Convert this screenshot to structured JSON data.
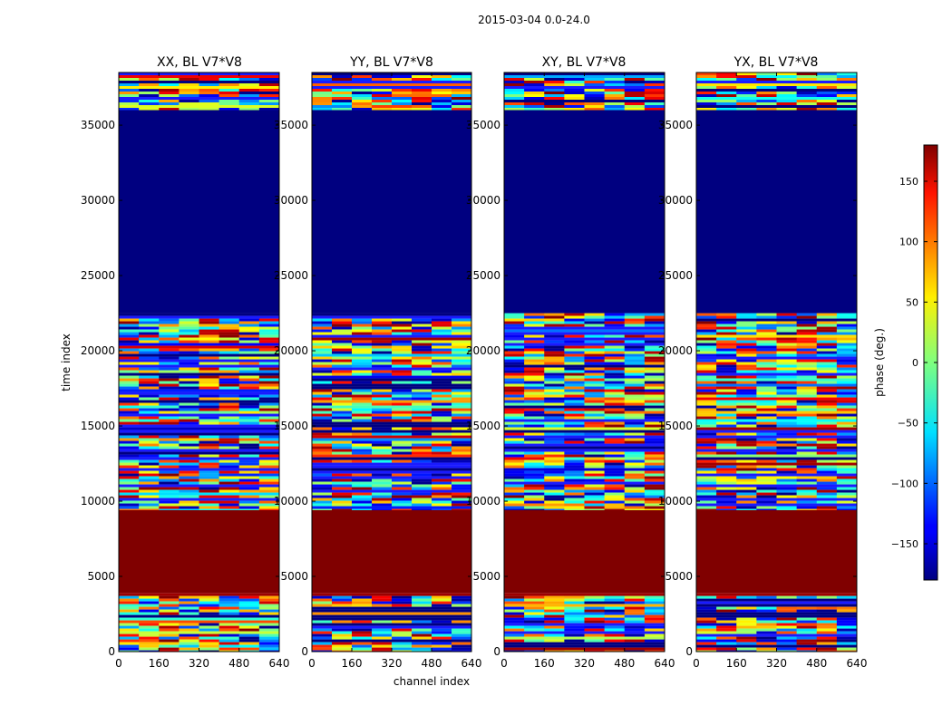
{
  "chart_data": {
    "type": "heatmap",
    "suptitle": "2015-03-04 0.0-24.0",
    "xlabel": "channel index",
    "ylabel": "time index",
    "colorbar_label": "phase (deg.)",
    "colorbar_range": [
      -180,
      180
    ],
    "colorbar_ticks": [
      -150,
      -100,
      -50,
      0,
      50,
      100,
      150
    ],
    "colormap": "jet",
    "xlim": [
      0,
      640
    ],
    "ylim": [
      0,
      38500
    ],
    "x_ticks": [
      0,
      160,
      320,
      480,
      640
    ],
    "y_ticks": [
      0,
      5000,
      10000,
      15000,
      20000,
      25000,
      30000,
      35000
    ],
    "panels": [
      {
        "title": "XX, BL V7*V8",
        "polarization": "XX"
      },
      {
        "title": "YY, BL V7*V8",
        "polarization": "YY"
      },
      {
        "title": "XY, BL V7*V8",
        "polarization": "XY"
      },
      {
        "title": "YX, BL V7*V8",
        "polarization": "YX"
      }
    ],
    "time_bands": [
      {
        "t0": 0,
        "t1": 3700,
        "phase": "noise"
      },
      {
        "t0": 3700,
        "t1": 3900,
        "phase": 170
      },
      {
        "t0": 3900,
        "t1": 9400,
        "phase": 180
      },
      {
        "t0": 9400,
        "t1": 22500,
        "phase": "noise"
      },
      {
        "t0": 22500,
        "t1": 36000,
        "phase": -180
      },
      {
        "t0": 36000,
        "t1": 38500,
        "phase": "noise"
      }
    ],
    "colors": {
      "dark_red": "#800000",
      "dark_blue": "#000080",
      "frame": "#000000"
    }
  }
}
